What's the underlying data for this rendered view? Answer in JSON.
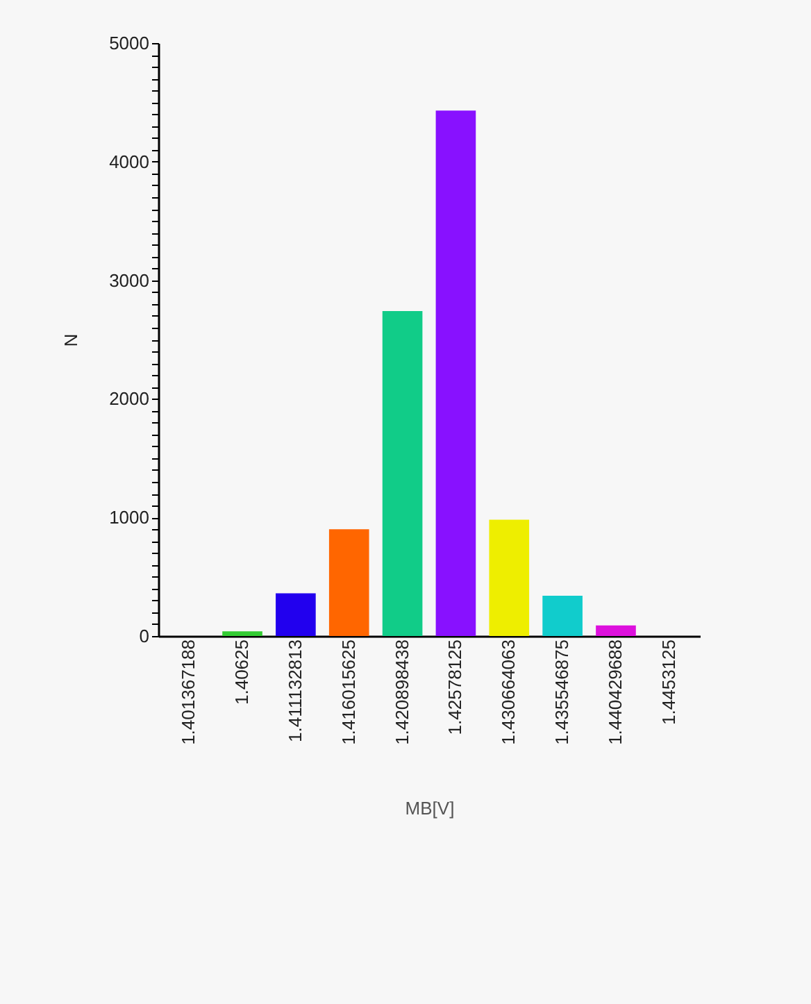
{
  "chart_data": {
    "type": "bar",
    "xlabel": "MB[V]",
    "ylabel": "N",
    "categories": [
      "1.401367188",
      "1.40625",
      "1.411132813",
      "1.416015625",
      "1.420898438",
      "1.42578125",
      "1.430664063",
      "1.435546875",
      "1.440429688",
      "1.4453125"
    ],
    "values": [
      0,
      40,
      360,
      900,
      2740,
      4430,
      980,
      340,
      90,
      0
    ],
    "colors": [
      "#ff0000",
      "#33cc33",
      "#2200ee",
      "#ff6600",
      "#11cc88",
      "#8811ff",
      "#eeee00",
      "#11cccc",
      "#dd11dd",
      "#ff0000"
    ],
    "ylim": [
      0,
      5000
    ],
    "yticks": [
      0,
      {
        "value": 100,
        "label": null
      },
      {
        "value": 200,
        "label": null
      },
      {
        "value": 300,
        "label": null
      },
      {
        "value": 400,
        "label": null
      },
      {
        "value": 500,
        "label": null
      },
      {
        "value": 600,
        "label": null
      },
      {
        "value": 700,
        "label": null
      },
      {
        "value": 800,
        "label": null
      },
      {
        "value": 900,
        "label": null
      },
      1000,
      {
        "value": 1100,
        "label": null
      },
      {
        "value": 1200,
        "label": null
      },
      {
        "value": 1300,
        "label": null
      },
      {
        "value": 1400,
        "label": null
      },
      {
        "value": 1500,
        "label": null
      },
      {
        "value": 1600,
        "label": null
      },
      {
        "value": 1700,
        "label": null
      },
      {
        "value": 1800,
        "label": null
      },
      {
        "value": 1900,
        "label": null
      },
      2000,
      {
        "value": 2100,
        "label": null
      },
      {
        "value": 2200,
        "label": null
      },
      {
        "value": 2300,
        "label": null
      },
      {
        "value": 2400,
        "label": null
      },
      {
        "value": 2500,
        "label": null
      },
      {
        "value": 2600,
        "label": null
      },
      {
        "value": 2700,
        "label": null
      },
      {
        "value": 2800,
        "label": null
      },
      {
        "value": 2900,
        "label": null
      },
      3000,
      {
        "value": 3100,
        "label": null
      },
      {
        "value": 3200,
        "label": null
      },
      {
        "value": 3300,
        "label": null
      },
      {
        "value": 3400,
        "label": null
      },
      {
        "value": 3500,
        "label": null
      },
      {
        "value": 3600,
        "label": null
      },
      {
        "value": 3700,
        "label": null
      },
      {
        "value": 3800,
        "label": null
      },
      {
        "value": 3900,
        "label": null
      },
      4000,
      {
        "value": 4100,
        "label": null
      },
      {
        "value": 4200,
        "label": null
      },
      {
        "value": 4300,
        "label": null
      },
      {
        "value": 4400,
        "label": null
      },
      {
        "value": 4500,
        "label": null
      },
      {
        "value": 4600,
        "label": null
      },
      {
        "value": 4700,
        "label": null
      },
      {
        "value": 4800,
        "label": null
      },
      {
        "value": 4900,
        "label": null
      },
      5000
    ],
    "grid": false,
    "legend": false
  }
}
